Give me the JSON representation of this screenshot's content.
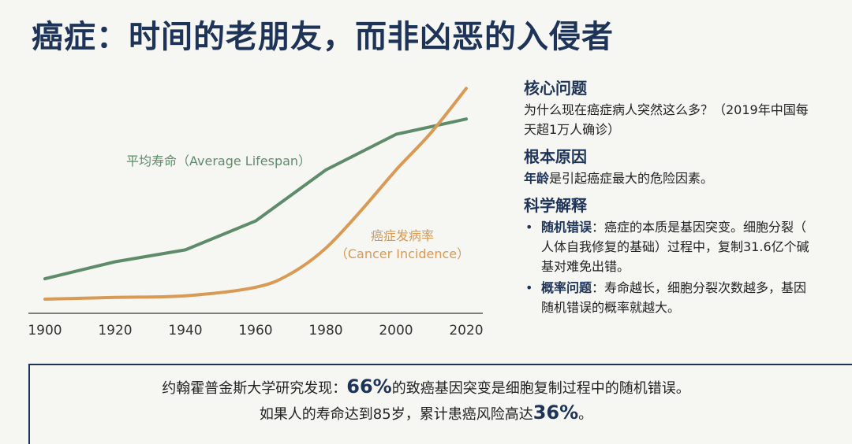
{
  "title": "癌症：时间的老朋友，而非凶恶的入侵者",
  "chart_data": {
    "type": "line",
    "x": [
      1900,
      1920,
      1940,
      1960,
      1980,
      2000,
      2020
    ],
    "xlim": [
      1900,
      2020
    ],
    "tick_labels": [
      "1900",
      "1920",
      "1940",
      "1960",
      "1980",
      "2000",
      "2020"
    ],
    "series": [
      {
        "name": "平均寿命（Average Lifespan）",
        "color": "#5e8c6a",
        "points": [
          [
            1900,
            12
          ],
          [
            1920,
            22
          ],
          [
            1940,
            29
          ],
          [
            1960,
            46
          ],
          [
            1980,
            76
          ],
          [
            2000,
            97
          ],
          [
            2020,
            106
          ]
        ]
      },
      {
        "name": "癌症发病率（Cancer Incidence）",
        "color": "#d89a55",
        "points": [
          [
            1900,
            0
          ],
          [
            1920,
            1
          ],
          [
            1940,
            2
          ],
          [
            1960,
            7
          ],
          [
            1970,
            15
          ],
          [
            1980,
            30
          ],
          [
            1990,
            52
          ],
          [
            2000,
            76
          ],
          [
            2010,
            98
          ],
          [
            2020,
            124
          ]
        ]
      }
    ],
    "ylim": [
      0,
      126
    ],
    "grid": false,
    "legend": "inline",
    "labels": {
      "lifespan": "平均寿命（Average Lifespan）",
      "cancer_line1": "癌症发病率",
      "cancer_line2": "（Cancer Incidence）"
    }
  },
  "right": {
    "sec1_title": "核心问题",
    "sec1_line1": "为什么现在癌症病人突然这么多？（2019年中国每",
    "sec1_line2": "天超1万人确诊）",
    "sec2_title": "根本原因",
    "sec2_bold": "年龄",
    "sec2_rest": "是引起癌症最大的危险因素。",
    "sec3_title": "科学解释",
    "bullet": "•",
    "b1_bold": "随机错误",
    "b1_line1": "：癌症的本质是基因突变。细胞分裂（",
    "b1_line2": "人体自我修复的基础）过程中，复制31.6亿个碱",
    "b1_line3": "基对难免出错。",
    "b2_bold": "概率问题",
    "b2_line1": "：寿命越长，细胞分裂次数越多，基因",
    "b2_line2": "随机错误的概率就越大。"
  },
  "bottom": {
    "l1_pre": "约翰霍普金斯大学研究发现：",
    "l1_hl": "66%",
    "l1_post": "的致癌基因突变是细胞复制过程中的随机错误。",
    "l2_pre": "如果人的寿命达到85岁，累计患癌风险高达",
    "l2_hl": "36%",
    "l2_post": "。"
  }
}
